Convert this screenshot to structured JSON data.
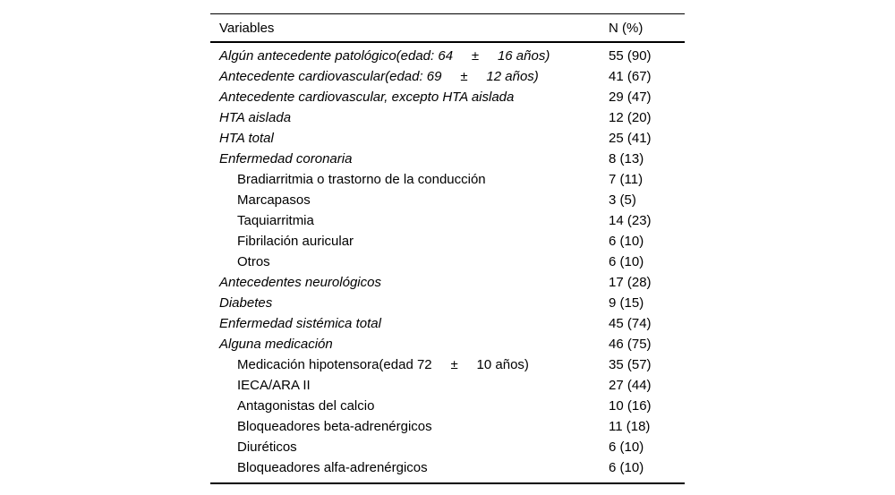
{
  "table": {
    "header": {
      "variables": "Variables",
      "n_pct": "N (%)"
    },
    "rows": [
      {
        "label": "Algún antecedente patológico(edad: 64     ±     16 años)",
        "value": "55 (90)",
        "style": "main"
      },
      {
        "label": "Antecedente cardiovascular(edad: 69     ±     12 años)",
        "value": "41 (67)",
        "style": "main"
      },
      {
        "label": "Antecedente cardiovascular, excepto HTA aislada",
        "value": "29 (47)",
        "style": "main"
      },
      {
        "label": "HTA aislada",
        "value": "12 (20)",
        "style": "main"
      },
      {
        "label": "HTA total",
        "value": "25 (41)",
        "style": "main"
      },
      {
        "label": "Enfermedad coronaria",
        "value": "8 (13)",
        "style": "main"
      },
      {
        "label": "Bradiarritmia o trastorno de la conducción",
        "value": "7 (11)",
        "style": "sub"
      },
      {
        "label": "Marcapasos",
        "value": "3 (5)",
        "style": "sub"
      },
      {
        "label": "Taquiarritmia",
        "value": "14 (23)",
        "style": "sub"
      },
      {
        "label": "Fibrilación auricular",
        "value": "6 (10)",
        "style": "sub"
      },
      {
        "label": "Otros",
        "value": "6 (10)",
        "style": "sub"
      },
      {
        "label": "Antecedentes neurológicos",
        "value": "17 (28)",
        "style": "main"
      },
      {
        "label": "Diabetes",
        "value": "9 (15)",
        "style": "main"
      },
      {
        "label": "Enfermedad sistémica total",
        "value": "45 (74)",
        "style": "main"
      },
      {
        "label": "Alguna medicación",
        "value": "46 (75)",
        "style": "main"
      },
      {
        "label": "Medicación hipotensora(edad 72     ±     10 años)",
        "value": "35 (57)",
        "style": "sub"
      },
      {
        "label": "IECA/ARA II",
        "value": "27 (44)",
        "style": "sub"
      },
      {
        "label": "Antagonistas del calcio",
        "value": "10 (16)",
        "style": "sub"
      },
      {
        "label": "Bloqueadores beta-adrenérgicos",
        "value": "11 (18)",
        "style": "sub"
      },
      {
        "label": "Diuréticos",
        "value": "6 (10)",
        "style": "sub"
      },
      {
        "label": "Bloqueadores alfa-adrenérgicos",
        "value": "6 (10)",
        "style": "sub"
      }
    ]
  }
}
